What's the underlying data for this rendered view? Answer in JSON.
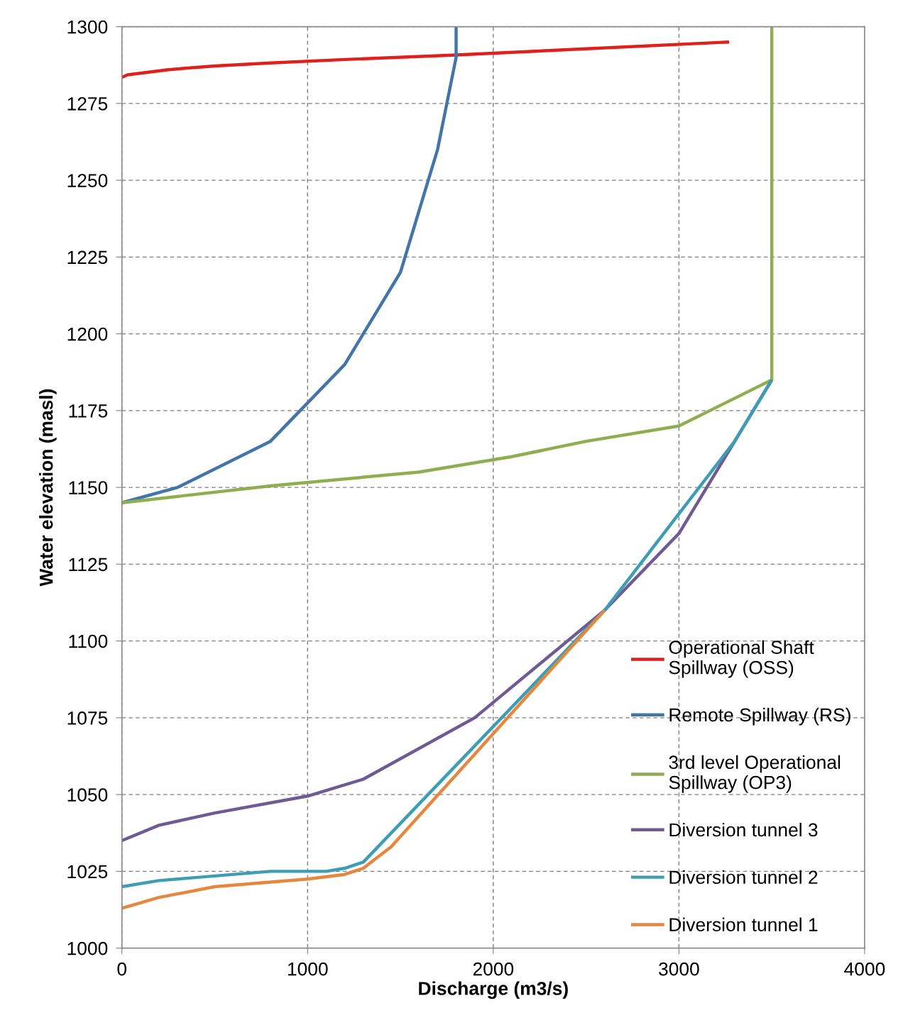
{
  "chart_data": {
    "type": "line",
    "xlabel": "Discharge (m3/s)",
    "ylabel": "Water elevation (masl)",
    "xlim": [
      0,
      4000
    ],
    "ylim": [
      1000,
      1300
    ],
    "xticks": [
      0,
      1000,
      2000,
      3000,
      4000
    ],
    "yticks": [
      1000,
      1025,
      1050,
      1075,
      1100,
      1125,
      1150,
      1175,
      1200,
      1225,
      1250,
      1275,
      1300
    ],
    "grid": true,
    "legend": "bottom right",
    "marker": "none",
    "line_style": "solid",
    "series": [
      {
        "name": "Operational Shaft\nSpillway (OSS)",
        "color": "#e0201c",
        "x": [
          0,
          30,
          250,
          500,
          800,
          1200,
          1800,
          2500,
          3270
        ],
        "values": [
          1283.5,
          1284.3,
          1286,
          1287.2,
          1288.2,
          1289.3,
          1290.8,
          1292.8,
          1295
        ]
      },
      {
        "name": "Remote Spillway (RS)",
        "color": "#4475a8",
        "x": [
          0,
          300,
          800,
          1200,
          1500,
          1700,
          1800,
          1800
        ],
        "values": [
          1145,
          1150,
          1165,
          1190,
          1220,
          1260,
          1290,
          1300
        ]
      },
      {
        "name": "3rd level Operational\nSpillway (OP3)",
        "color": "#8fae4f",
        "x": [
          0,
          800,
          1600,
          2100,
          2500,
          3000,
          3500,
          3500
        ],
        "values": [
          1145,
          1150.5,
          1155,
          1160,
          1165,
          1170,
          1185,
          1300
        ]
      },
      {
        "name": "Diversion tunnel 3",
        "color": "#6f5a96",
        "x": [
          0,
          200,
          500,
          1000,
          1300,
          1900,
          2600,
          3000,
          3500
        ],
        "values": [
          1035,
          1040,
          1044,
          1049.5,
          1055,
          1075,
          1110,
          1135,
          1185
        ]
      },
      {
        "name": "Diversion tunnel 2",
        "color": "#3d9db5",
        "x": [
          0,
          200,
          500,
          800,
          1100,
          1200,
          1300,
          2600,
          3300,
          3500
        ],
        "values": [
          1020,
          1022,
          1023.5,
          1025,
          1025,
          1026,
          1028,
          1110,
          1165,
          1185
        ]
      },
      {
        "name": "Diversion tunnel 1",
        "color": "#e5873d",
        "x": [
          0,
          200,
          500,
          1000,
          1200,
          1300,
          1450,
          2600
        ],
        "values": [
          1013,
          1016.5,
          1020,
          1022.5,
          1024,
          1026,
          1033,
          1110
        ]
      }
    ]
  }
}
